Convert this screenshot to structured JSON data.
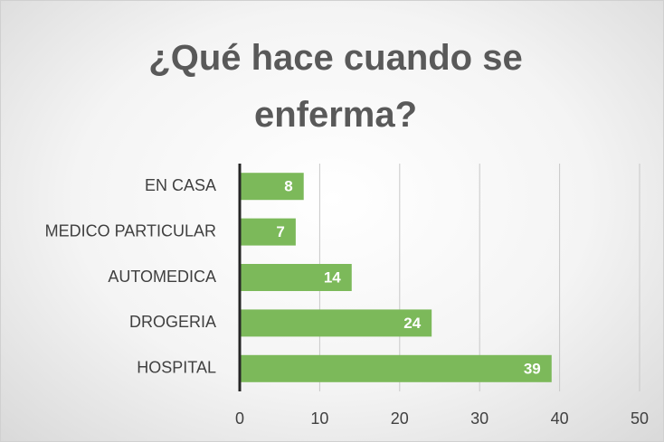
{
  "chart_data": {
    "type": "hbar",
    "title": "¿Qué hace cuando se enferma?",
    "categories": [
      "EN CASA",
      "MEDICO PARTICULAR",
      "AUTOMEDICA",
      "DROGERIA",
      "HOSPITAL"
    ],
    "values": [
      8,
      7,
      14,
      24,
      39
    ],
    "color": "#7cb95a",
    "xlim": [
      0,
      50
    ],
    "xticks": [
      0,
      10,
      20,
      30,
      40,
      50
    ],
    "grid": true
  }
}
